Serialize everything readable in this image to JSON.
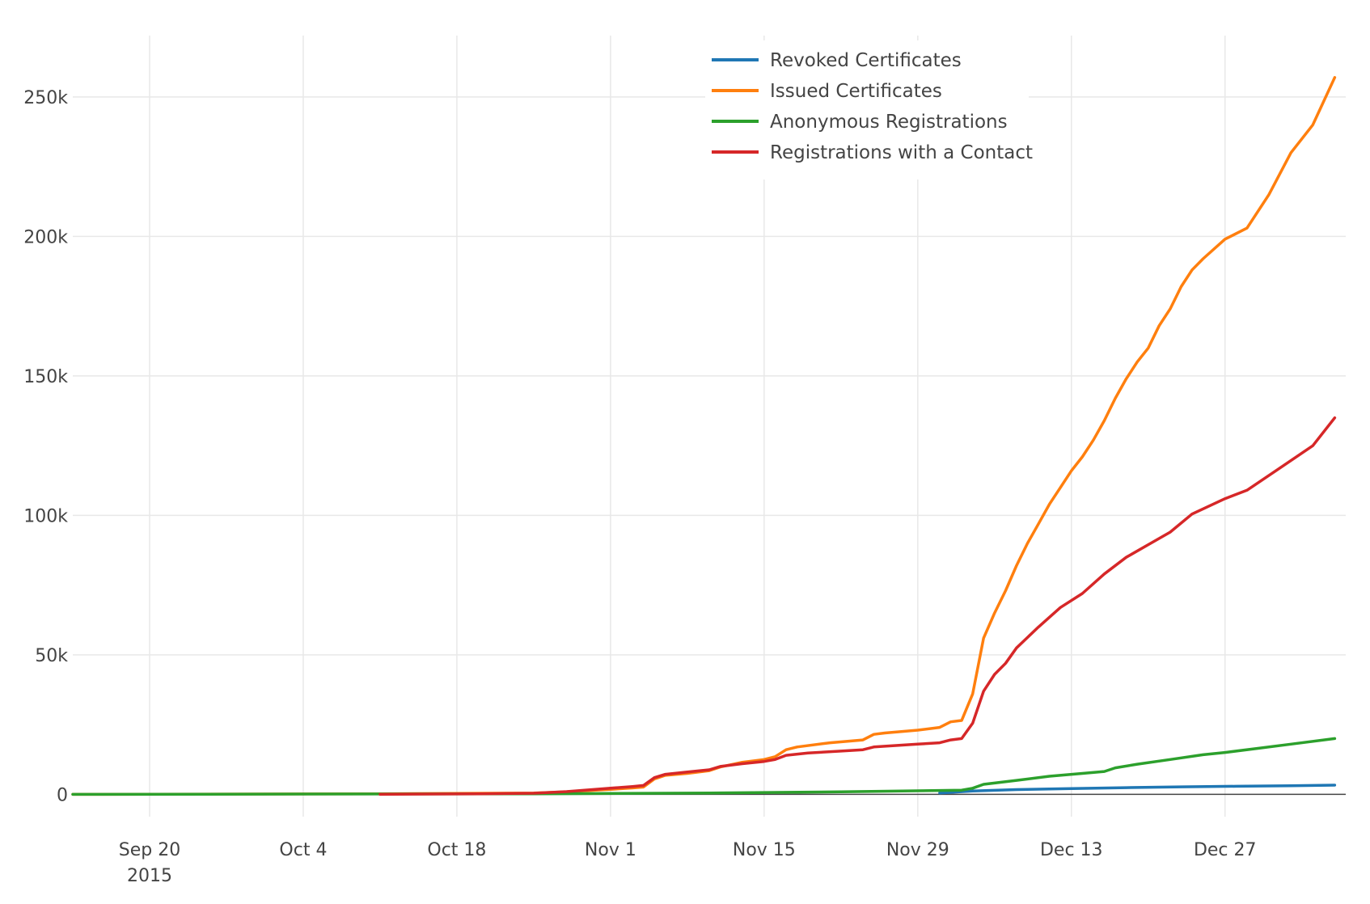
{
  "chart_data": {
    "type": "line",
    "title": "",
    "xlabel": "",
    "ylabel": "",
    "x_axis": {
      "type": "date",
      "range": [
        "2015-09-13",
        "2016-01-07"
      ],
      "ticks": [
        {
          "date": "2015-09-20",
          "label": "Sep 20",
          "sublabel": "2015"
        },
        {
          "date": "2015-10-04",
          "label": "Oct 4",
          "sublabel": ""
        },
        {
          "date": "2015-10-18",
          "label": "Oct 18",
          "sublabel": ""
        },
        {
          "date": "2015-11-01",
          "label": "Nov 1",
          "sublabel": ""
        },
        {
          "date": "2015-11-15",
          "label": "Nov 15",
          "sublabel": ""
        },
        {
          "date": "2015-11-29",
          "label": "Nov 29",
          "sublabel": ""
        },
        {
          "date": "2015-12-13",
          "label": "Dec 13",
          "sublabel": ""
        },
        {
          "date": "2015-12-27",
          "label": "Dec 27",
          "sublabel": ""
        }
      ]
    },
    "y_axis": {
      "range": [
        -8000,
        272000
      ],
      "ticks": [
        {
          "value": 0,
          "label": "0"
        },
        {
          "value": 50000,
          "label": "50k"
        },
        {
          "value": 100000,
          "label": "100k"
        },
        {
          "value": 150000,
          "label": "150k"
        },
        {
          "value": 200000,
          "label": "200k"
        },
        {
          "value": 250000,
          "label": "250k"
        }
      ]
    },
    "grid": true,
    "legend_position": "top-center",
    "series": [
      {
        "name": "Revoked Certificates",
        "color": "#1f77b4",
        "points": [
          [
            "2015-12-01",
            500
          ],
          [
            "2015-12-04",
            1200
          ],
          [
            "2015-12-08",
            1700
          ],
          [
            "2015-12-13",
            2100
          ],
          [
            "2015-12-18",
            2400
          ],
          [
            "2015-12-23",
            2700
          ],
          [
            "2015-12-28",
            2900
          ],
          [
            "2016-01-02",
            3100
          ],
          [
            "2016-01-06",
            3300
          ]
        ]
      },
      {
        "name": "Issued Certificates",
        "color": "#ff7f0e",
        "points": [
          [
            "2015-09-13",
            0
          ],
          [
            "2015-10-11",
            200
          ],
          [
            "2015-10-25",
            500
          ],
          [
            "2015-10-28",
            900
          ],
          [
            "2015-11-01",
            1800
          ],
          [
            "2015-11-03",
            2300
          ],
          [
            "2015-11-04",
            2600
          ],
          [
            "2015-11-05",
            5500
          ],
          [
            "2015-11-06",
            6800
          ],
          [
            "2015-11-08",
            7500
          ],
          [
            "2015-11-10",
            8500
          ],
          [
            "2015-11-11",
            9800
          ],
          [
            "2015-11-13",
            11500
          ],
          [
            "2015-11-15",
            12500
          ],
          [
            "2015-11-16",
            13500
          ],
          [
            "2015-11-17",
            16000
          ],
          [
            "2015-11-18",
            17000
          ],
          [
            "2015-11-21",
            18500
          ],
          [
            "2015-11-24",
            19500
          ],
          [
            "2015-11-25",
            21500
          ],
          [
            "2015-11-26",
            22000
          ],
          [
            "2015-11-29",
            23000
          ],
          [
            "2015-12-01",
            24000
          ],
          [
            "2015-12-02",
            26000
          ],
          [
            "2015-12-03",
            26500
          ],
          [
            "2015-12-04",
            36000
          ],
          [
            "2015-12-05",
            56000
          ],
          [
            "2015-12-06",
            65000
          ],
          [
            "2015-12-07",
            73000
          ],
          [
            "2015-12-08",
            82000
          ],
          [
            "2015-12-09",
            90000
          ],
          [
            "2015-12-10",
            97000
          ],
          [
            "2015-12-11",
            104000
          ],
          [
            "2015-12-12",
            110000
          ],
          [
            "2015-12-13",
            116000
          ],
          [
            "2015-12-14",
            121000
          ],
          [
            "2015-12-15",
            127000
          ],
          [
            "2015-12-16",
            134000
          ],
          [
            "2015-12-17",
            142000
          ],
          [
            "2015-12-18",
            149000
          ],
          [
            "2015-12-19",
            155000
          ],
          [
            "2015-12-20",
            160000
          ],
          [
            "2015-12-21",
            168000
          ],
          [
            "2015-12-22",
            174000
          ],
          [
            "2015-12-23",
            182000
          ],
          [
            "2015-12-24",
            188000
          ],
          [
            "2015-12-25",
            192000
          ],
          [
            "2015-12-27",
            199000
          ],
          [
            "2015-12-29",
            203000
          ],
          [
            "2015-12-31",
            215000
          ],
          [
            "2016-01-02",
            230000
          ],
          [
            "2016-01-04",
            240000
          ],
          [
            "2016-01-06",
            257000
          ]
        ]
      },
      {
        "name": "Anonymous Registrations",
        "color": "#2ca02c",
        "points": [
          [
            "2015-09-13",
            0
          ],
          [
            "2015-10-25",
            200
          ],
          [
            "2015-11-10",
            500
          ],
          [
            "2015-11-22",
            900
          ],
          [
            "2015-12-03",
            1500
          ],
          [
            "2015-12-04",
            2200
          ],
          [
            "2015-12-05",
            3600
          ],
          [
            "2015-12-08",
            5000
          ],
          [
            "2015-12-11",
            6500
          ],
          [
            "2015-12-14",
            7500
          ],
          [
            "2015-12-16",
            8200
          ],
          [
            "2015-12-17",
            9500
          ],
          [
            "2015-12-19",
            10800
          ],
          [
            "2015-12-22",
            12500
          ],
          [
            "2015-12-25",
            14200
          ],
          [
            "2015-12-27",
            15000
          ],
          [
            "2015-12-30",
            16500
          ],
          [
            "2016-01-02",
            18000
          ],
          [
            "2016-01-06",
            20000
          ]
        ]
      },
      {
        "name": "Registrations with a Contact",
        "color": "#d62728",
        "points": [
          [
            "2015-10-11",
            0
          ],
          [
            "2015-10-20",
            200
          ],
          [
            "2015-10-25",
            400
          ],
          [
            "2015-10-28",
            1000
          ],
          [
            "2015-11-01",
            2200
          ],
          [
            "2015-11-03",
            2800
          ],
          [
            "2015-11-04",
            3200
          ],
          [
            "2015-11-05",
            6000
          ],
          [
            "2015-11-06",
            7200
          ],
          [
            "2015-11-08",
            8000
          ],
          [
            "2015-11-10",
            8800
          ],
          [
            "2015-11-11",
            10000
          ],
          [
            "2015-11-13",
            11000
          ],
          [
            "2015-11-15",
            11800
          ],
          [
            "2015-11-16",
            12500
          ],
          [
            "2015-11-17",
            14000
          ],
          [
            "2015-11-19",
            14800
          ],
          [
            "2015-11-22",
            15500
          ],
          [
            "2015-11-24",
            16000
          ],
          [
            "2015-11-25",
            17000
          ],
          [
            "2015-11-27",
            17500
          ],
          [
            "2015-11-29",
            18000
          ],
          [
            "2015-12-01",
            18500
          ],
          [
            "2015-12-02",
            19500
          ],
          [
            "2015-12-03",
            20000
          ],
          [
            "2015-12-04",
            25500
          ],
          [
            "2015-12-05",
            37000
          ],
          [
            "2015-12-06",
            43000
          ],
          [
            "2015-12-07",
            47000
          ],
          [
            "2015-12-08",
            52500
          ],
          [
            "2015-12-10",
            60000
          ],
          [
            "2015-12-12",
            67000
          ],
          [
            "2015-12-14",
            72000
          ],
          [
            "2015-12-16",
            79000
          ],
          [
            "2015-12-18",
            85000
          ],
          [
            "2015-12-20",
            89500
          ],
          [
            "2015-12-22",
            94000
          ],
          [
            "2015-12-24",
            100500
          ],
          [
            "2015-12-27",
            106000
          ],
          [
            "2015-12-29",
            109000
          ],
          [
            "2016-01-01",
            117000
          ],
          [
            "2016-01-04",
            125000
          ],
          [
            "2016-01-06",
            135000
          ]
        ]
      }
    ]
  }
}
